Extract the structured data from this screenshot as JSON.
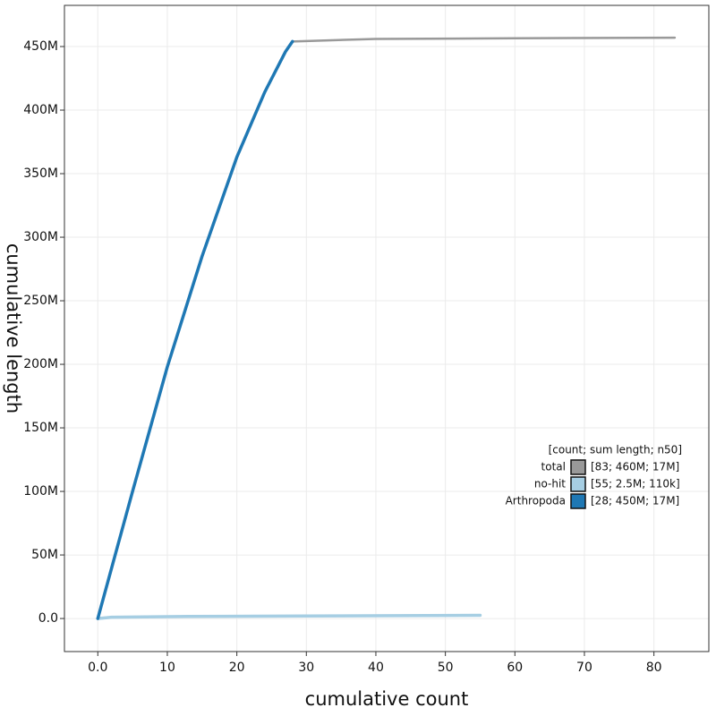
{
  "chart_data": {
    "type": "line",
    "x_label": "cumulative count",
    "y_label": "cumulative length",
    "xlim": [
      -4.8,
      87.9
    ],
    "ylim": [
      -26000000,
      482400000
    ],
    "xticks": [
      {
        "value": 0,
        "label": "0.0"
      },
      10,
      20,
      30,
      40,
      50,
      60,
      70,
      80
    ],
    "yticks": [
      {
        "value": 0,
        "label": "0.0"
      },
      {
        "value": 50000000,
        "label": "50M"
      },
      {
        "value": 100000000,
        "label": "100M"
      },
      {
        "value": 150000000,
        "label": "150M"
      },
      {
        "value": 200000000,
        "label": "200M"
      },
      {
        "value": 250000000,
        "label": "250M"
      },
      {
        "value": 300000000,
        "label": "300M"
      },
      {
        "value": 350000000,
        "label": "350M"
      },
      {
        "value": 400000000,
        "label": "400M"
      },
      {
        "value": 450000000,
        "label": "450M"
      }
    ],
    "grid": true,
    "legend_position": "right",
    "legend_title": "[count; sum length; n50]",
    "series": [
      {
        "name": "total",
        "color": "#999999",
        "summary": "[83; 460M; 17M]",
        "x": [
          0,
          5,
          10,
          15,
          20,
          24,
          27,
          28,
          40,
          60,
          83
        ],
        "values": [
          0,
          100000000,
          198000000,
          285000000,
          363000000,
          414000000,
          446000000,
          454000000,
          456000000,
          456500000,
          457000000
        ]
      },
      {
        "name": "no-hit",
        "color": "#a6cee3",
        "summary": "[55; 2.5M; 110k]",
        "x": [
          0,
          2,
          13,
          30,
          55
        ],
        "values": [
          0,
          1000000,
          1600000,
          2000000,
          2500000
        ]
      },
      {
        "name": "Arthropoda",
        "color": "#1f78b4",
        "summary": "[28; 450M; 17M]",
        "x": [
          0,
          5,
          10,
          15,
          20,
          24,
          27,
          28
        ],
        "values": [
          0,
          100000000,
          198000000,
          285000000,
          363000000,
          414000000,
          446000000,
          454000000
        ]
      }
    ]
  }
}
